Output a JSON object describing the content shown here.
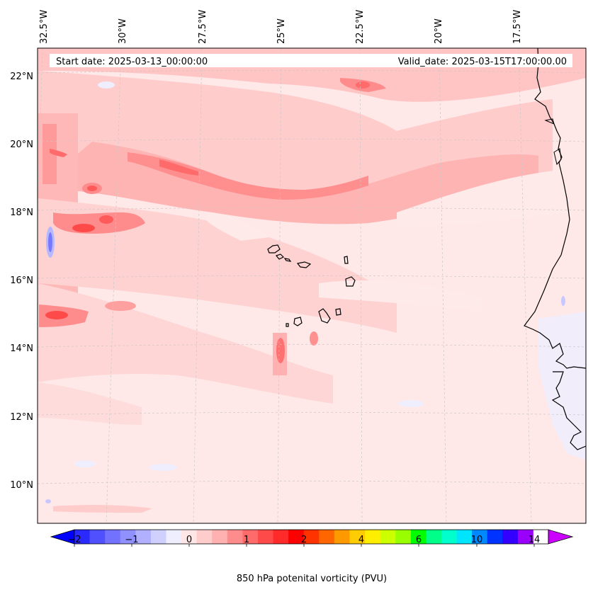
{
  "header": {
    "start_date": "Start date: 2025-03-13_00:00:00",
    "valid_date": "Valid_date: 2025-03-15T17:00:00.00"
  },
  "map": {
    "projection": "conic",
    "lon_labels": [
      "32.5°W",
      "30°W",
      "27.5°W",
      "25°W",
      "22.5°W",
      "20°W",
      "17.5°W"
    ],
    "lat_labels": [
      "22°N",
      "20°N",
      "18°N",
      "16°N",
      "14°N",
      "12°N",
      "10°N"
    ],
    "background_color": "#ffe8e8",
    "coastline_color": "#000000",
    "grid_style": "dashed light gray"
  },
  "colorbar": {
    "label": "850 hPa potenital vorticity (PVU)",
    "tick_labels": [
      "−2",
      "−1",
      "0",
      "1",
      "2",
      "4",
      "6",
      "10",
      "14"
    ],
    "colors": [
      "#0000ff",
      "#2a2aff",
      "#5050ff",
      "#7272ff",
      "#9090ff",
      "#b0b0ff",
      "#d0d0ff",
      "#eeeeff",
      "#ffe6e6",
      "#ffcccc",
      "#ffb0b0",
      "#ff8c8c",
      "#ff6b6b",
      "#ff4a4a",
      "#ff2a2a",
      "#ff0000",
      "#ff3300",
      "#ff6600",
      "#ff9900",
      "#ffcc00",
      "#ffee00",
      "#ccff00",
      "#99ff00",
      "#00ff00",
      "#00ff88",
      "#00ffcc",
      "#00e5ff",
      "#0088ff",
      "#0033ff",
      "#3300ff",
      "#9900ff",
      "#cc00ff"
    ],
    "extend": "both"
  }
}
